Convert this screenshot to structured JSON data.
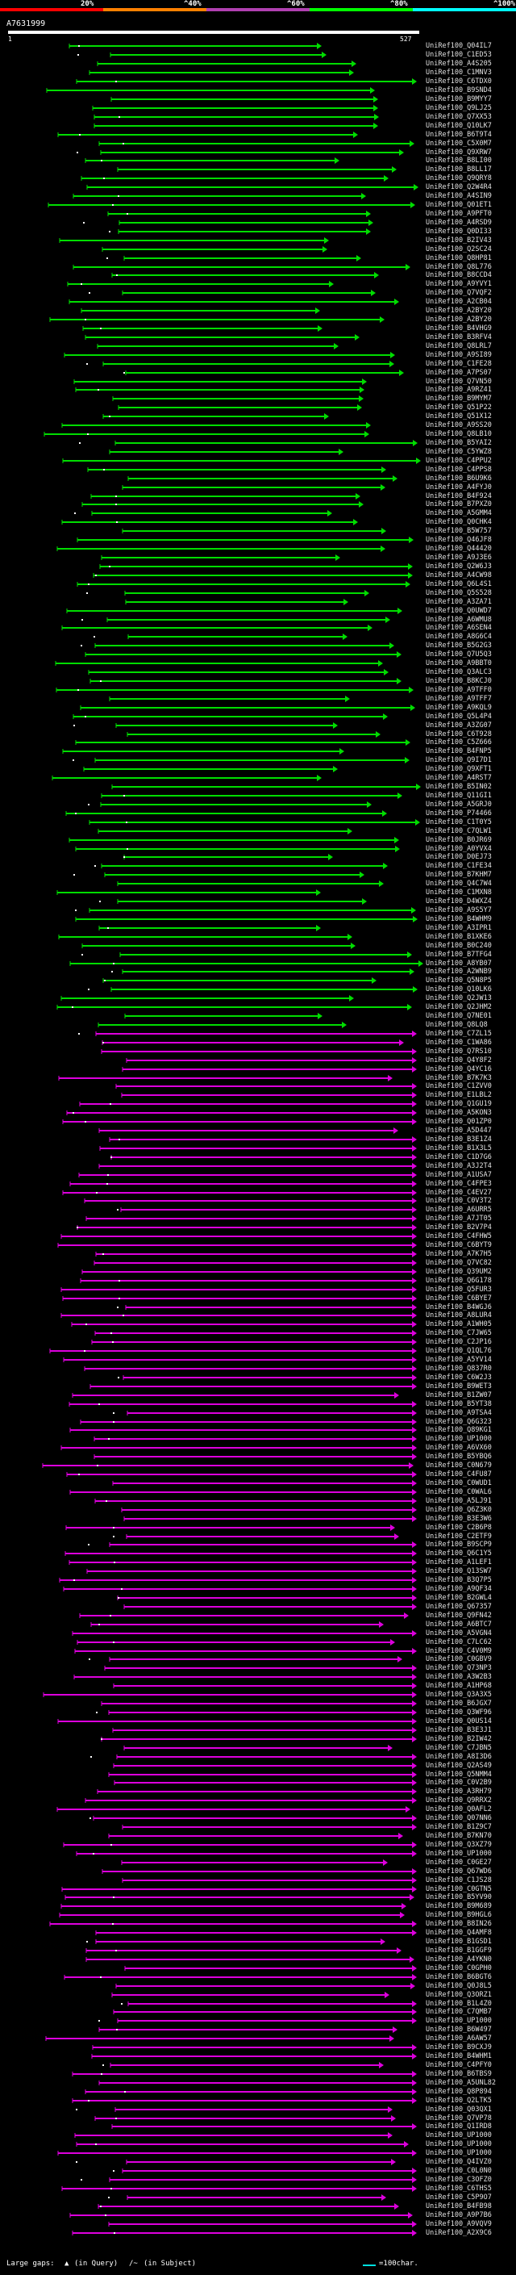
{
  "window": {
    "title": "A7631999 BLAST graphic summary"
  },
  "header": {
    "color_segments": [
      {
        "label": "20%",
        "color": "#ff0000"
      },
      {
        "label": "^40%",
        "color": "#ff8000"
      },
      {
        "label": "^60%",
        "color": "#b040b0"
      },
      {
        "label": "^80%",
        "color": "#00ff00"
      },
      {
        "label": "^100%",
        "color": "#00ffff"
      }
    ],
    "percent_labels": [
      "20%",
      "^40%",
      "^60%",
      "^80%",
      "^100%"
    ]
  },
  "query": {
    "name": "A7631999",
    "start": "1",
    "end": "527"
  },
  "hit_colors": {
    "green": "#00dd00",
    "magenta": "#dd00dd"
  },
  "hits": [
    "UniRef100_Q04IL7",
    "UniRef100_C1ED53",
    "UniRef100_A4S205",
    "UniRef100_C1MNV3",
    "UniRef100_C6TDX0",
    "UniRef100_B9SND4",
    "UniRef100_B9MYY7",
    "UniRef100_Q9LJ25",
    "UniRef100_Q7XX53",
    "UniRef100_Q10LK7",
    "UniRef100_B6T9T4",
    "UniRef100_C5X0M7",
    "UniRef100_Q9XRW7",
    "UniRef100_B8LI00",
    "UniRef100_B8LL17",
    "UniRef100_Q9QRY8",
    "UniRef100_Q2W4R4",
    "UniRef100_A4SIN9",
    "UniRef100_Q01ET1",
    "UniRef100_A9PFT0",
    "UniRef100_A4RSD9",
    "UniRef100_Q0DI33",
    "UniRef100_B2IV43",
    "UniRef100_Q2SC24",
    "UniRef100_Q8HP81",
    "UniRef100_Q8L776",
    "UniRef100_B8CCD4",
    "UniRef100_A9YVY1",
    "UniRef100_Q7VQF2",
    "UniRef100_A2CB04",
    "UniRef100_A2BY20",
    "UniRef100_A2BY20",
    "UniRef100_B4VHG9",
    "UniRef100_B3RFV4",
    "UniRef100_Q8LRL7",
    "UniRef100_A9SI89",
    "UniRef100_C1FE28",
    "UniRef100_A7PS07",
    "UniRef100_Q7VN50",
    "UniRef100_A9RZ41",
    "UniRef100_B9MYM7",
    "UniRef100_Q51P22",
    "UniRef100_Q51X12",
    "UniRef100_A9SS20",
    "UniRef100_Q8LB10",
    "UniRef100_B5YAI2",
    "UniRef100_C5YWZ8",
    "UniRef100_C4PPU2",
    "UniRef100_C4PPS8",
    "UniRef100_B6U9K6",
    "UniRef100_A4FYJ0",
    "UniRef100_B4F924",
    "UniRef100_B7PXZ0",
    "UniRef100_A5GMM4",
    "UniRef100_Q0CHK4",
    "UniRef100_B5W757",
    "UniRef100_Q46JF8",
    "UniRef100_Q44420",
    "UniRef100_A9J3E6",
    "UniRef100_Q2W6J3",
    "UniRef100_A4CW98",
    "UniRef100_Q6L4S1",
    "UniRef100_Q5S528",
    "UniRef100_A3ZA71",
    "UniRef100_Q0UWD7",
    "UniRef100_A6WMU8",
    "UniRef100_A6SEN4",
    "UniRef100_A8G6C4",
    "UniRef100_B5G2G3",
    "UniRef100_Q7U5Q3",
    "UniRef100_A9BBT0",
    "UniRef100_Q3ALC3",
    "UniRef100_B8KCJ0",
    "UniRef100_A9TFF0",
    "UniRef100_A9TFF7",
    "UniRef100_A9KQL9",
    "UniRef100_Q5L4P4",
    "UniRef100_A3ZG07",
    "UniRef100_C6T928",
    "UniRef100_C5Z666",
    "UniRef100_B4FNP5",
    "UniRef100_Q9I7D1",
    "UniRef100_Q9XFT1",
    "UniRef100_A4RST7",
    "UniRef100_B5IN02",
    "UniRef100_Q11GI1",
    "UniRef100_A5GRJ0",
    "UniRef100_P74466",
    "UniRef100_C1T0Y5",
    "UniRef100_C7QLW1",
    "UniRef100_B0JR69",
    "UniRef100_A0YVX4",
    "UniRef100_D0EJ73",
    "UniRef100_C1FE34",
    "UniRef100_B7KHM7",
    "UniRef100_Q4C7W4",
    "UniRef100_C1MXN8",
    "UniRef100_D4WXZ4",
    "UniRef100_A9S5Y7",
    "UniRef100_B4WHM9",
    "UniRef100_A3IPR1",
    "UniRef100_B1XKE6",
    "UniRef100_B0C240",
    "UniRef100_B7TFG4",
    "UniRef100_A8YB07",
    "UniRef100_A2WNB9",
    "UniRef100_Q5N8P5",
    "UniRef100_Q10LK6",
    "UniRef100_Q2JW13",
    "UniRef100_Q2JHM2",
    "UniRef100_Q7NE01",
    "UniRef100_Q8LQ8",
    "UniRef100_C7ZL15",
    "UniRef100_C1WA86",
    "UniRef100_Q7RS10",
    "UniRef100_Q4Y8F2",
    "UniRef100_Q4YC16",
    "UniRef100_B7K7K3",
    "UniRef100_C1ZVV0",
    "UniRef100_E1LBL2",
    "UniRef100_Q1GU19",
    "UniRef100_A5KON3",
    "UniRef100_Q01ZP0",
    "UniRef100_A5D447",
    "UniRef100_B3E1Z4",
    "UniRef100_B1X3L5",
    "UniRef100_C1D7G6",
    "UniRef100_A3J2T4",
    "UniRef100_A1USA7",
    "UniRef100_C4FPE3",
    "UniRef100_C4EV27",
    "UniRef100_C0V3T2",
    "UniRef100_A6URR5",
    "UniRef100_A7JT05",
    "UniRef100_B2V7P4",
    "UniRef100_C4FHW5",
    "UniRef100_C6BYT9",
    "UniRef100_A7K7H5",
    "UniRef100_Q7VC82",
    "UniRef100_Q39UM2",
    "UniRef100_Q6G178",
    "UniRef100_Q5FUR3",
    "UniRef100_C6BYE7",
    "UniRef100_B4WGJ6",
    "UniRef100_A8LUR4",
    "UniRef100_A1WH05",
    "UniRef100_C7JW65",
    "UniRef100_C2JP16",
    "UniRef100_Q1QL76",
    "UniRef100_A5YV14",
    "UniRef100_Q837R0",
    "UniRef100_C6W2J3",
    "UniRef100_B9WET3",
    "UniRef100_B1ZW07",
    "UniRef100_B5YT38",
    "UniRef100_A9TSA4",
    "UniRef100_Q6G323",
    "UniRef100_Q89KG1",
    "UniRef100_UP1000",
    "UniRef100_A6VX60",
    "UniRef100_B5YBQ6",
    "UniRef100_C0N679",
    "UniRef100_C4FU87",
    "UniRef100_C0WUD1",
    "UniRef100_C0WAL6",
    "UniRef100_A5LJ91",
    "UniRef100_Q6Z3K0",
    "UniRef100_B3E3W6",
    "UniRef100_C2B6P8",
    "UniRef100_C2ETF9",
    "UniRef100_B9SCP9",
    "UniRef100_Q6C1Y5",
    "UniRef100_A1LEF1",
    "UniRef100_Q13SW7",
    "UniRef100_B3Q7P5",
    "UniRef100_A9QF34",
    "UniRef100_B2GWL4",
    "UniRef100_Q67357",
    "UniRef100_Q9FN42",
    "UniRef100_A6BTC7",
    "UniRef100_A5VGN4",
    "UniRef100_C7LC62",
    "UniRef100_C4V0M9",
    "UniRef100_C0GBV9",
    "UniRef100_Q73NP3",
    "UniRef100_A3W2B3",
    "UniRef100_A1HP68",
    "UniRef100_Q3A3X5",
    "UniRef100_B6JGX7",
    "UniRef100_Q3WF96",
    "UniRef100_Q0US14",
    "UniRef100_B3E3J1",
    "UniRef100_B2IW42",
    "UniRef100_C7JBN5",
    "UniRef100_A8I3D6",
    "UniRef100_Q2AS49",
    "UniRef100_Q5NMM4",
    "UniRef100_C0V2B9",
    "UniRef100_A3RH79",
    "UniRef100_Q9RRX2",
    "UniRef100_Q0AFL2",
    "UniRef100_Q07NN6",
    "UniRef100_B1Z9C7",
    "UniRef100_B7KN70",
    "UniRef100_Q3XZ79",
    "UniRef100_UP1000",
    "UniRef100_C0GE27",
    "UniRef100_Q67WD6",
    "UniRef100_C1JS28",
    "UniRef100_C0GTN5",
    "UniRef100_B5YV90",
    "UniRef100_B9M689",
    "UniRef100_B9HGL6",
    "UniRef100_B8IN26",
    "UniRef100_Q4AMF8",
    "UniRef100_B1GSD1",
    "UniRef100_B1GGF9",
    "UniRef100_A4YKN0",
    "UniRef100_C0GPH0",
    "UniRef100_B6BGT6",
    "UniRef100_Q0J8L5",
    "UniRef100_Q3ORZ1",
    "UniRef100_B1L4Z0",
    "UniRef100_C7QMB7",
    "UniRef100_UP1000",
    "UniRef100_B6W497",
    "UniRef100_A6AW57",
    "UniRef100_B9CXJ9",
    "UniRef100_B4WHM1",
    "UniRef100_C4PFY0",
    "UniRef100_B6TBS9",
    "UniRef100_A5UNL82",
    "UniRef100_Q8P894",
    "UniRef100_Q2LTK5",
    "UniRef100_Q03QX1",
    "UniRef100_Q7VP78",
    "UniRef100_Q1IRD8",
    "UniRef100_UP1000",
    "UniRef100_UP1000",
    "UniRef100_UP1000",
    "UniRef100_Q4IVZ0",
    "UniRef100_C0L0N0",
    "UniRef100_C3OFZ0",
    "UniRef100_C6THS5",
    "UniRef100_C5P9O7",
    "UniRef100_B4FB98",
    "UniRef100_A9P7B6",
    "UniRef100_A9VQV9",
    "UniRef100_A2X9C6"
  ],
  "footer": {
    "large_gaps_label": "Large gaps:",
    "query_gap_label": "(in Query)",
    "subject_gap_label": "(in Subject)",
    "scale_label": "=100char."
  }
}
